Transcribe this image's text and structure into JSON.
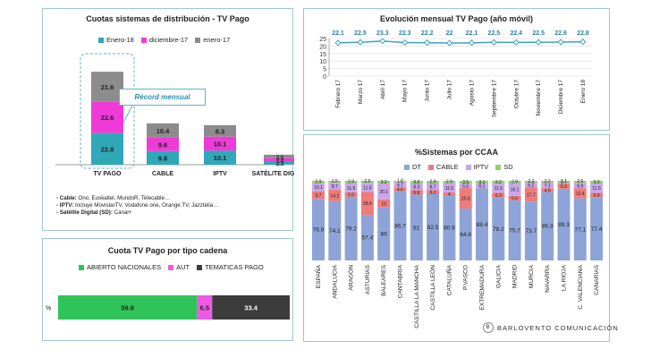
{
  "colors": {
    "enero18": "#2fa8b8",
    "dic17": "#f03ad8",
    "ene17": "#8c8c8c",
    "dt": "#8ea4d8",
    "cable": "#ef7b7b",
    "iptv": "#c9a6ee",
    "sd": "#8fd16a",
    "abierto": "#2ec45a",
    "aut": "#ee5ae4",
    "tematicas": "#3c3c3c",
    "line": "#3aa3c3",
    "callout": "#5fb3c3"
  },
  "panel_cuotas": {
    "title": "Cuotas sistemas de distribución - TV Pago",
    "callout": "Récord mensual",
    "notes": [
      {
        "label": "- Cable:",
        "text": " Ono, Euskaltel, MundoR, Telecable…"
      },
      {
        "label": "- IPTV:",
        "text": " Incluye MovistarTV, Vodafone one, Orange TV, Jazztelia…"
      },
      {
        "label": "- Satélite Digital (SD):",
        "text": " Canal+"
      }
    ]
  },
  "panel_evolucion": {
    "title": "Evolución mensual TV Pago (año móvil)"
  },
  "panel_ccaa": {
    "title": "%Sistemas por CCAA"
  },
  "panel_cadena": {
    "title": "Cuota TV Pago por tipo cadena"
  },
  "logo": {
    "text": "BARLOVENTO COMUNICACIÓN",
    "mark": "B"
  },
  "chart_data": [
    {
      "type": "bar",
      "stacked": true,
      "title": "Cuotas sistemas de distribución - TV Pago",
      "categories": [
        "TV PAGO",
        "CABLE",
        "IPTV",
        "SATÉLITE DIGITAL"
      ],
      "series": [
        {
          "name": "Enero-18",
          "color_key": "enero18",
          "values": [
            22.8,
            9.8,
            10.1,
            2.3
          ]
        },
        {
          "name": "diciembre-17",
          "color_key": "dic17",
          "values": [
            22.6,
            9.6,
            10.1,
            2.4
          ]
        },
        {
          "name": "enero-17",
          "color_key": "ene17",
          "values": [
            21.6,
            10.4,
            8.3,
            2.5
          ]
        }
      ],
      "legend": "top"
    },
    {
      "type": "line",
      "title": "Evolución mensual TV Pago (año móvil)",
      "categories": [
        "Febrero 17",
        "Marzo 17",
        "Abril 17",
        "Mayo 17",
        "Junio 17",
        "Julio 17",
        "Agosto 17",
        "Septiembre 17",
        "Octubre 17",
        "Noviembre 17",
        "Diciembre 17",
        "Enero 18"
      ],
      "values": [
        22.1,
        22.5,
        23.3,
        22.3,
        22.2,
        22,
        22.1,
        22.5,
        22.4,
        22.5,
        22.6,
        22.8
      ],
      "ylim": [
        0,
        25
      ],
      "yticks": [
        0,
        5,
        10,
        15,
        20,
        25
      ]
    },
    {
      "type": "bar",
      "stacked": true,
      "title": "%Sistemas por CCAA",
      "categories": [
        "ESPAÑA",
        "ANDALUCIA",
        "ARAGÓN",
        "ASTURIAS",
        "BALEARES",
        "CANTABRIA",
        "CASTILLA LA MANCHA",
        "CASTILLA LEÓN",
        "CATALUÑA",
        "P.VASCO",
        "EXTREMADURA",
        "GALICIA",
        "MADRID",
        "MURCIA",
        "NAVARRA",
        "LA RIOJA",
        "C. VALENCIANA",
        "CANARIAS"
      ],
      "series": [
        {
          "name": "DT",
          "color_key": "dt",
          "values": [
            76.8,
            74.1,
            79.2,
            57.4,
            66,
            86.7,
            81,
            82.5,
            80.9,
            64.8,
            88.4,
            78.2,
            75.7,
            73.7,
            86.3,
            89.3,
            77.1,
            77.4
          ]
        },
        {
          "name": "CABLE",
          "color_key": "cable",
          "values": [
            9.7,
            14.2,
            5.5,
            28.9,
            10,
            4.6,
            5.6,
            5.1,
            4,
            25.5,
            0.2,
            6.3,
            5.6,
            17.7,
            4.5,
            6.3,
            12.4,
            5.9
          ]
        },
        {
          "name": "IPTV",
          "color_key": "iptv",
          "values": [
            10.1,
            8.7,
            11.5,
            11.5,
            20.1,
            6.7,
            8.3,
            8.7,
            11.5,
            5.5,
            6.1,
            11.5,
            16.1,
            6.2,
            7.1,
            1.4,
            6.9,
            11.5
          ]
        },
        {
          "name": "SD",
          "color_key": "sd",
          "values": [
            2.9,
            2.5,
            2.9,
            2.5,
            3.2,
            1.8,
            3.2,
            2.9,
            2.9,
            3.5,
            3.1,
            3.2,
            2.9,
            2.2,
            2.2,
            2.1,
            2.5,
            3.3
          ]
        }
      ],
      "legend": "top"
    },
    {
      "type": "bar",
      "stacked": true,
      "orientation": "horizontal",
      "title": "Cuota TV Pago por tipo cadena",
      "categories": [
        "%"
      ],
      "series": [
        {
          "name": "ABIERTO NACIONALES",
          "color_key": "abierto",
          "values": [
            59.8
          ]
        },
        {
          "name": "AUT",
          "color_key": "aut",
          "values": [
            6.5
          ]
        },
        {
          "name": "TEMATICAS PAGO",
          "color_key": "tematicas",
          "values": [
            33.4
          ]
        }
      ],
      "legend": "top"
    }
  ]
}
